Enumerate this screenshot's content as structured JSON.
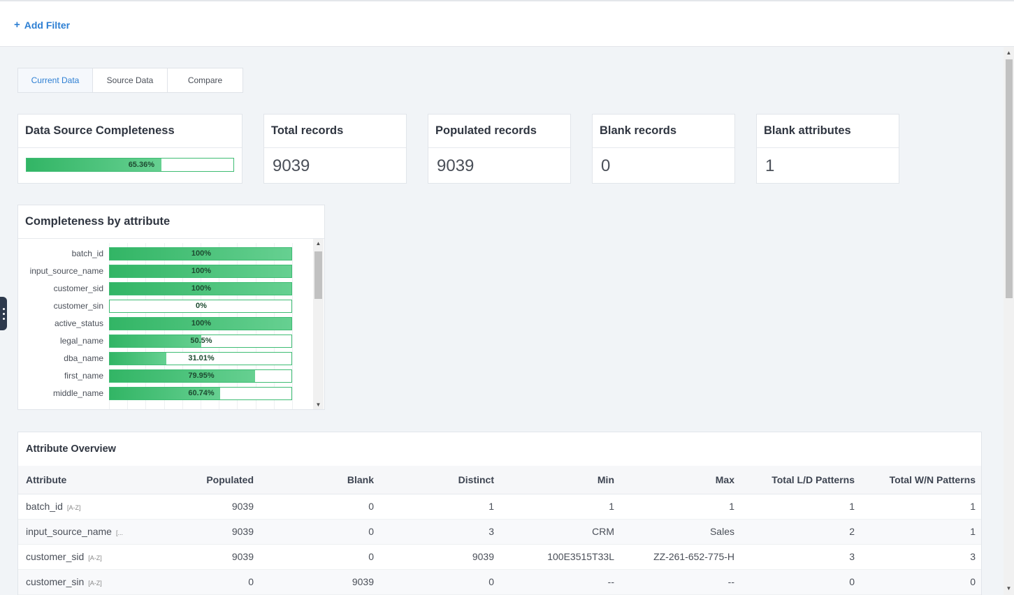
{
  "filter": {
    "add_label": "Add Filter"
  },
  "tabs": [
    {
      "label": "Current Data",
      "active": true
    },
    {
      "label": "Source Data",
      "active": false
    },
    {
      "label": "Compare",
      "active": false
    }
  ],
  "completeness": {
    "title": "Data Source Completeness",
    "value": 65.36,
    "label": "65.36%"
  },
  "stats": [
    {
      "title": "Total records",
      "value": "9039"
    },
    {
      "title": "Populated records",
      "value": "9039"
    },
    {
      "title": "Blank records",
      "value": "0"
    },
    {
      "title": "Blank attributes",
      "value": "1"
    }
  ],
  "attr_chart": {
    "title": "Completeness by attribute",
    "rows": [
      {
        "name": "batch_id",
        "value": 100,
        "label": "100%"
      },
      {
        "name": "input_source_name",
        "value": 100,
        "label": "100%"
      },
      {
        "name": "customer_sid",
        "value": 100,
        "label": "100%"
      },
      {
        "name": "customer_sin",
        "value": 0,
        "label": "0%"
      },
      {
        "name": "active_status",
        "value": 100,
        "label": "100%"
      },
      {
        "name": "legal_name",
        "value": 50.5,
        "label": "50.5%"
      },
      {
        "name": "dba_name",
        "value": 31.01,
        "label": "31.01%"
      },
      {
        "name": "first_name",
        "value": 79.95,
        "label": "79.95%"
      },
      {
        "name": "middle_name",
        "value": 60.74,
        "label": "60.74%"
      }
    ]
  },
  "overview": {
    "title": "Attribute Overview",
    "columns": [
      "Attribute",
      "Populated",
      "Blank",
      "Distinct",
      "Min",
      "Max",
      "Total L/D Patterns",
      "Total W/N Patterns"
    ],
    "rows": [
      {
        "attribute": "batch_id",
        "tag": "[A-Z]",
        "populated": "9039",
        "blank": "0",
        "distinct": "1",
        "min": "1",
        "max": "1",
        "ld": "1",
        "wn": "1"
      },
      {
        "attribute": "input_source_name",
        "tag": "[...",
        "populated": "9039",
        "blank": "0",
        "distinct": "3",
        "min": "CRM",
        "max": "Sales",
        "ld": "2",
        "wn": "1"
      },
      {
        "attribute": "customer_sid",
        "tag": "[A-Z]",
        "populated": "9039",
        "blank": "0",
        "distinct": "9039",
        "min": "100E3515T33L",
        "max": "ZZ-261-652-775-H",
        "ld": "3",
        "wn": "3"
      },
      {
        "attribute": "customer_sin",
        "tag": "[A-Z]",
        "populated": "0",
        "blank": "9039",
        "distinct": "0",
        "min": "--",
        "max": "--",
        "ld": "0",
        "wn": "0"
      }
    ]
  }
}
